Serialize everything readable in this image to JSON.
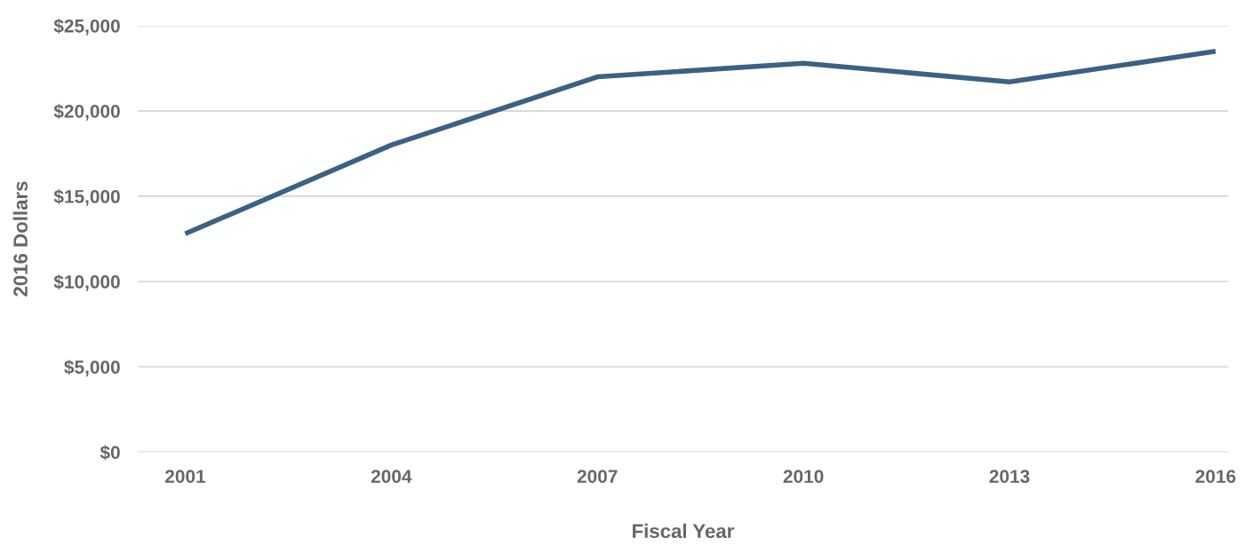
{
  "chart_data": {
    "type": "line",
    "xlabel": "Fiscal Year",
    "ylabel": "2016 Dollars",
    "categories": [
      "2001",
      "2004",
      "2007",
      "2010",
      "2013",
      "2016"
    ],
    "series": [
      {
        "color": "#3a6186",
        "values": [
          12800,
          18000,
          22000,
          22800,
          21700,
          23500
        ]
      }
    ],
    "ylim": [
      0,
      25000
    ],
    "yticks": [
      {
        "value": 0,
        "label": "$0"
      },
      {
        "value": 5000,
        "label": "$5,000"
      },
      {
        "value": 10000,
        "label": "$10,000"
      },
      {
        "value": 15000,
        "label": "$15,000"
      },
      {
        "value": 20000,
        "label": "$20,000"
      },
      {
        "value": 25000,
        "label": "$25,000"
      }
    ],
    "grid": "y",
    "marker": "none",
    "line_style": "solid"
  }
}
